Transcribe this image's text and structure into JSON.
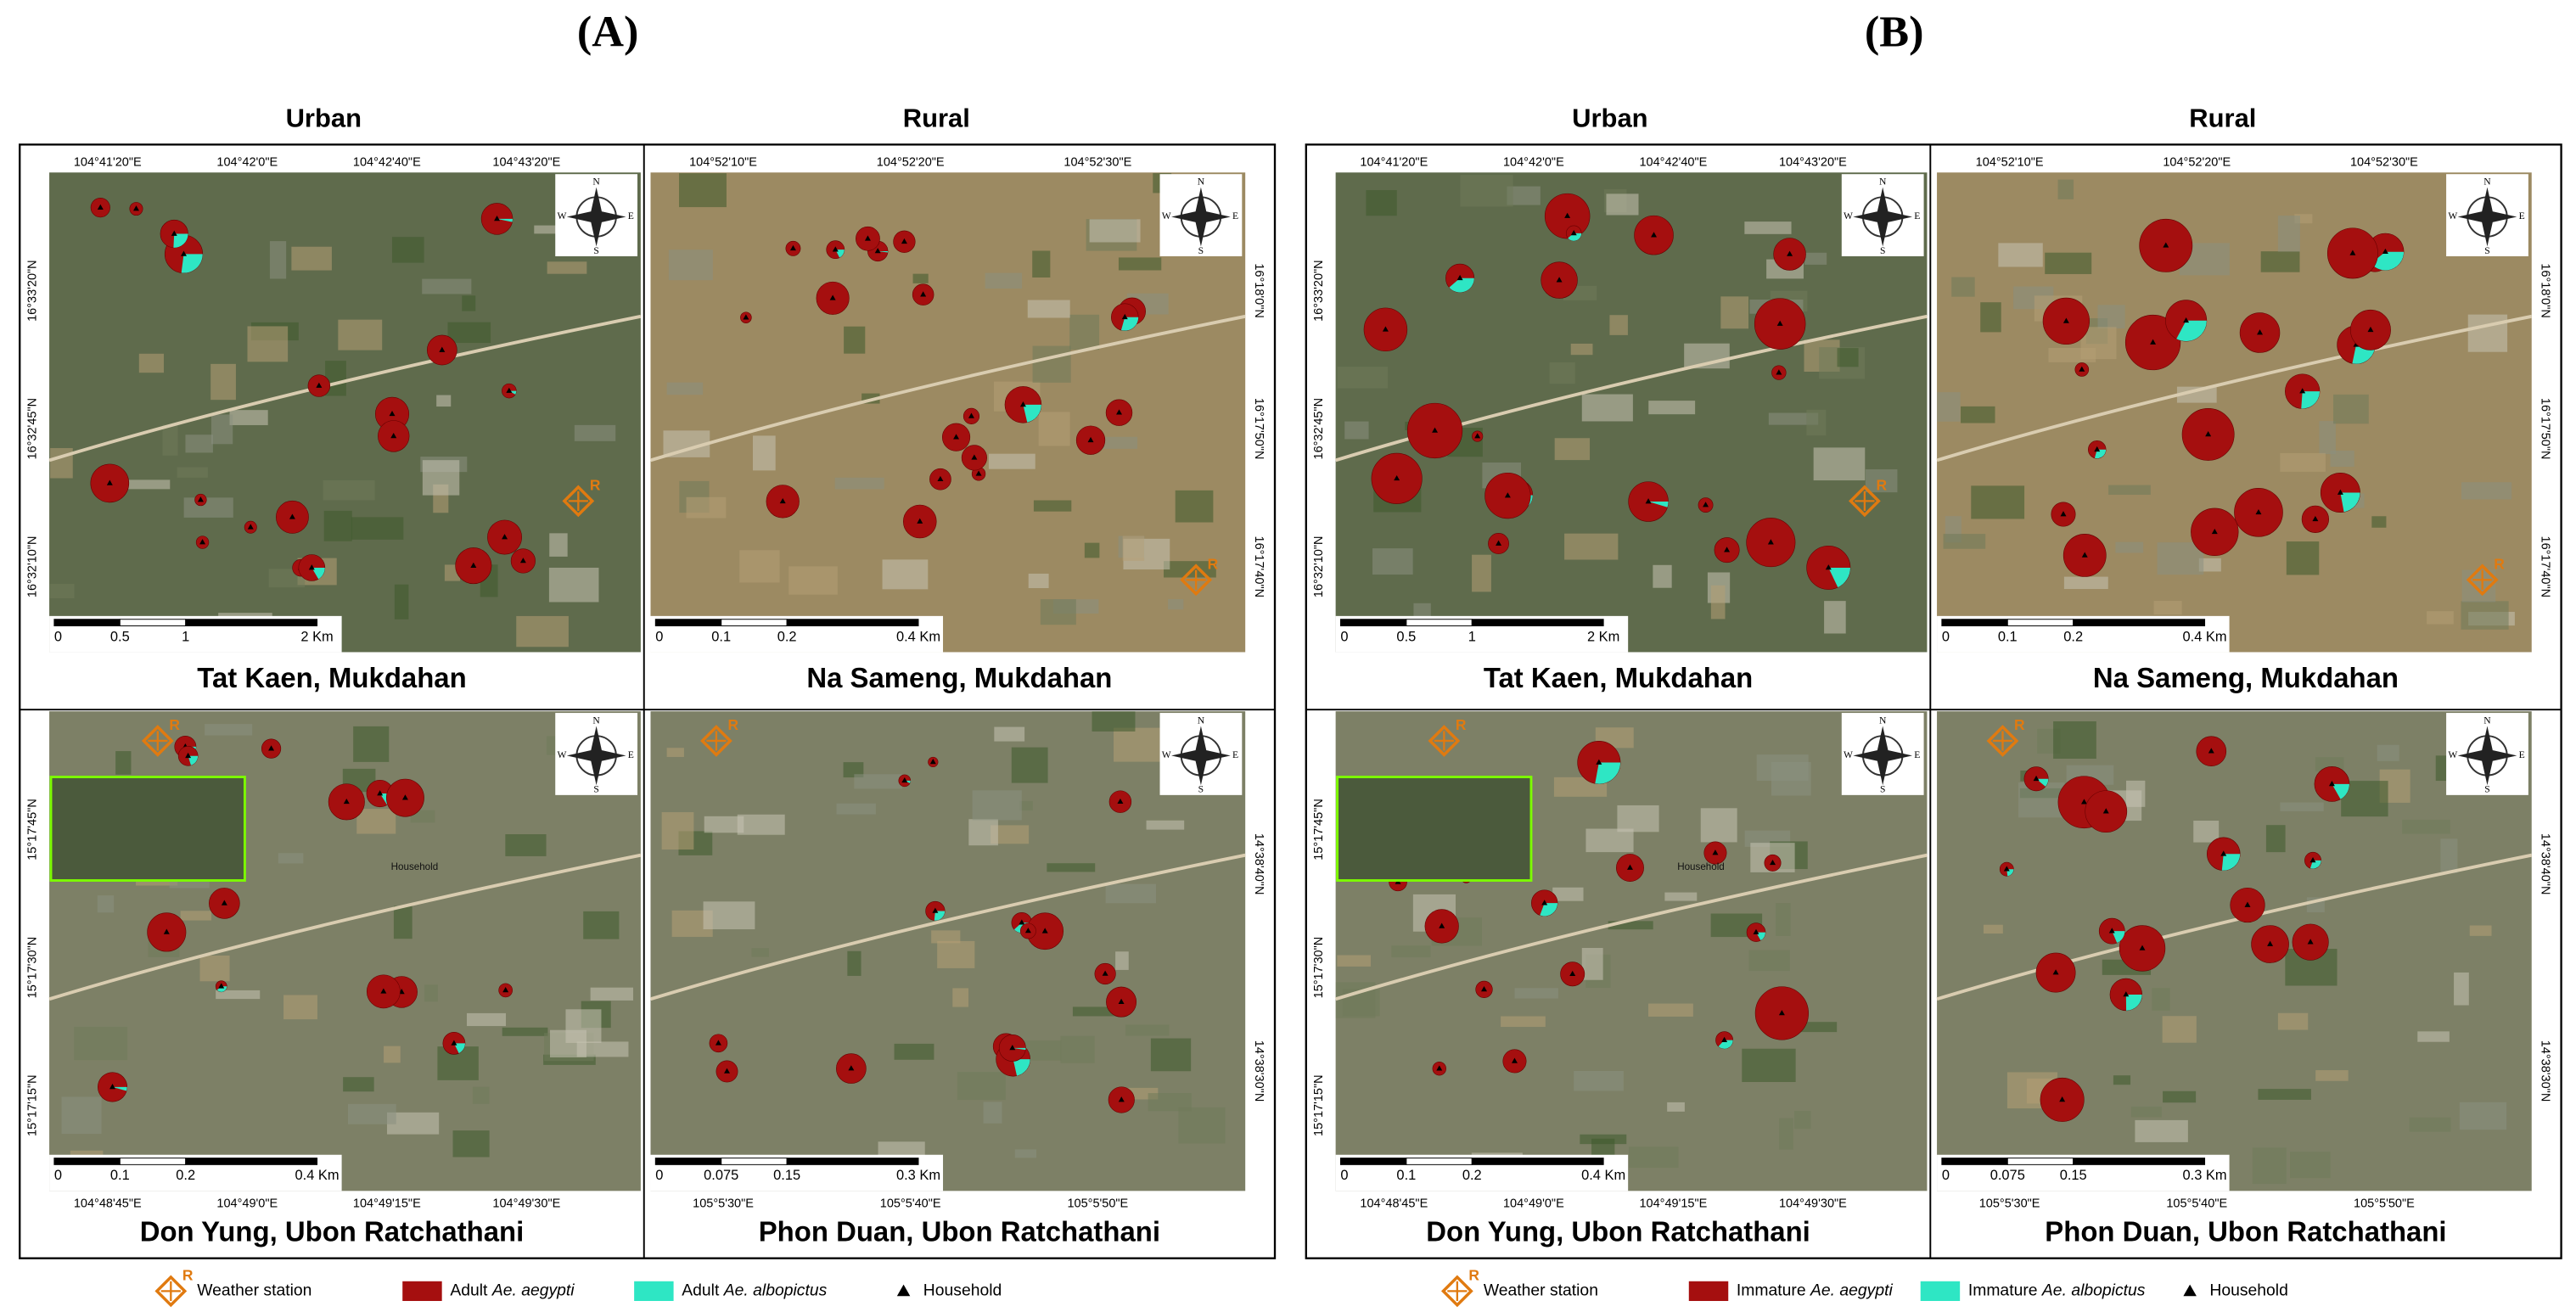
{
  "panels": [
    {
      "label": "(A)",
      "columns": [
        "Urban",
        "Rural"
      ],
      "maps": [
        {
          "name": "Tat Kaen, Mukdahan",
          "ticks_edge": [
            "104°41'20\"E",
            "104°42'0\"E",
            "104°42'40\"E",
            "104°43'20\"E"
          ],
          "ticks_side": [
            "16°33'20\"N",
            "16°32'45\"N",
            "16°32'10\"N"
          ],
          "scale": [
            "0",
            "0.5",
            "1",
            "2 Km"
          ]
        },
        {
          "name": "Na Sameng, Mukdahan",
          "ticks_edge": [
            "104°52'10\"E",
            "104°52'20\"E",
            "104°52'30\"E"
          ],
          "ticks_side": [
            "16°18'0\"N",
            "16°17'50\"N",
            "16°17'40\"N"
          ],
          "scale": [
            "0",
            "0.1",
            "0.2",
            "0.4 Km"
          ]
        },
        {
          "name": "Don Yung, Ubon Ratchathani",
          "ticks_edge": [
            "104°48'45\"E",
            "104°49'0\"E",
            "104°49'15\"E",
            "104°49'30\"E"
          ],
          "ticks_side": [
            "15°17'45\"N",
            "15°17'30\"N",
            "15°17'15\"N"
          ],
          "scale": [
            "0",
            "0.1",
            "0.2",
            "0.4 Km"
          ],
          "inset_label": "Household"
        },
        {
          "name": "Phon Duan, Ubon Ratchathani",
          "ticks_edge": [
            "105°5'30\"E",
            "105°5'40\"E",
            "105°5'50\"E"
          ],
          "ticks_side": [
            "14°38'40\"N",
            "14°38'30\"N"
          ],
          "scale": [
            "0",
            "0.075",
            "0.15",
            "0.3 Km"
          ]
        }
      ],
      "legend": {
        "station": "Weather station",
        "station_letter": "R",
        "aegypti_prefix": "Adult",
        "aegypti": "Ae. aegypti",
        "albopictus_prefix": "Adult",
        "albopictus": "Ae. albopictus",
        "household": "Household"
      }
    },
    {
      "label": "(B)",
      "columns": [
        "Urban",
        "Rural"
      ],
      "maps": [
        {
          "name": "Tat Kaen, Mukdahan",
          "ticks_edge": [
            "104°41'20\"E",
            "104°42'0\"E",
            "104°42'40\"E",
            "104°43'20\"E"
          ],
          "ticks_side": [
            "16°33'20\"N",
            "16°32'45\"N",
            "16°32'10\"N"
          ],
          "scale": [
            "0",
            "0.5",
            "1",
            "2 Km"
          ]
        },
        {
          "name": "Na Sameng, Mukdahan",
          "ticks_edge": [
            "104°52'10\"E",
            "104°52'20\"E",
            "104°52'30\"E"
          ],
          "ticks_side": [
            "16°18'0\"N",
            "16°17'50\"N",
            "16°17'40\"N"
          ],
          "scale": [
            "0",
            "0.1",
            "0.2",
            "0.4 Km"
          ]
        },
        {
          "name": "Don Yung, Ubon Ratchathani",
          "ticks_edge": [
            "104°48'45\"E",
            "104°49'0\"E",
            "104°49'15\"E",
            "104°49'30\"E"
          ],
          "ticks_side": [
            "15°17'45\"N",
            "15°17'30\"N",
            "15°17'15\"N"
          ],
          "scale": [
            "0",
            "0.1",
            "0.2",
            "0.4 Km"
          ],
          "inset_label": "Household"
        },
        {
          "name": "Phon Duan, Ubon Ratchathani",
          "ticks_edge": [
            "105°5'30\"E",
            "105°5'40\"E",
            "105°5'50\"E"
          ],
          "ticks_side": [
            "14°38'40\"N",
            "14°38'30\"N"
          ],
          "scale": [
            "0",
            "0.075",
            "0.15",
            "0.3 Km"
          ]
        }
      ],
      "legend": {
        "station": "Weather station",
        "station_letter": "R",
        "aegypti_prefix": "Immature",
        "aegypti": "Ae. aegypti",
        "albopictus_prefix": "Immature",
        "albopictus": "Ae. albopictus",
        "household": "Household"
      }
    }
  ]
}
